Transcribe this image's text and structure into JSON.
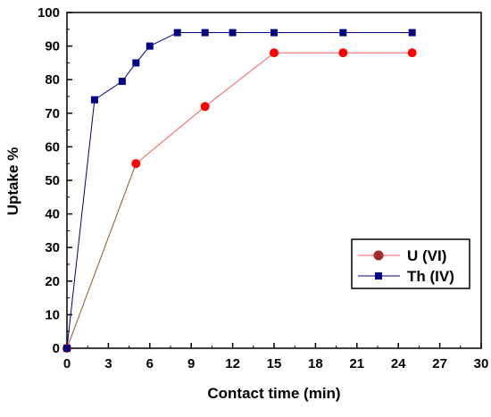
{
  "chart_data": {
    "type": "line",
    "title": "",
    "xlabel": "Contact time (min)",
    "ylabel": "Uptake %",
    "xlim": [
      0,
      30
    ],
    "ylim": [
      0,
      100
    ],
    "xticks": [
      "0",
      "3",
      "6",
      "9",
      "12",
      "15",
      "18",
      "21",
      "24",
      "27",
      "30"
    ],
    "yticks": [
      "0",
      "10",
      "20",
      "30",
      "40",
      "50",
      "60",
      "70",
      "80",
      "90",
      "100"
    ],
    "grid": false,
    "legend_position": "lower-right",
    "series": [
      {
        "name": "U (VI)",
        "marker": "circle",
        "color": "#ff0000",
        "line_color": "#ff5a5a",
        "first_segment_color": "#8b5a2b",
        "legend_marker_color": "#a52a2a",
        "x": [
          0,
          5,
          10,
          15,
          20,
          25
        ],
        "y": [
          0,
          55,
          72,
          88,
          88,
          88
        ]
      },
      {
        "name": "Th (IV)",
        "marker": "square",
        "color": "#000080",
        "line_color": "#000080",
        "x": [
          0,
          2,
          4,
          5,
          6,
          8,
          10,
          12,
          15,
          20,
          25
        ],
        "y": [
          0,
          74,
          79.5,
          85,
          90,
          94,
          94,
          94,
          94,
          94,
          94
        ]
      }
    ]
  }
}
